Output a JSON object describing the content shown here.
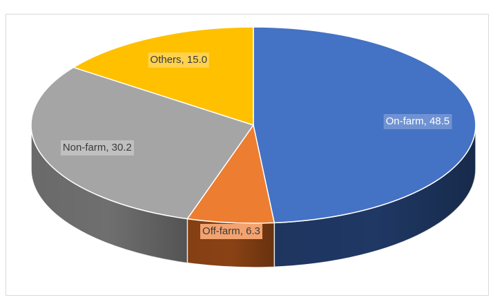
{
  "chart_data": {
    "type": "pie",
    "title": "",
    "style": "3d",
    "legend": "none",
    "slices": [
      {
        "name": "On-farm",
        "value": 48.5,
        "label": "On-farm, 48.5",
        "color": "#4472c4",
        "side_color": "#1f3864",
        "label_bg": "#6f92d2",
        "label_color": "#ffffff"
      },
      {
        "name": "Off-farm",
        "value": 6.3,
        "label": "Off-farm, 6.3",
        "color": "#ed7d31",
        "side_color": "#8a4214",
        "label_bg": "#f3a36f",
        "label_color": "#3a3a3a"
      },
      {
        "name": "Non-farm",
        "value": 30.2,
        "label": "Non-farm, 30.2",
        "color": "#a5a5a5",
        "side_color": "#6f6f6f",
        "label_bg": "#c0c0c0",
        "label_color": "#3a3a3a"
      },
      {
        "name": "Others",
        "value": 15.0,
        "label": "Others, 15.0",
        "color": "#ffc000",
        "side_color": "#a67c00",
        "label_bg": "#ffd24d",
        "label_color": "#3a3a3a"
      }
    ]
  }
}
